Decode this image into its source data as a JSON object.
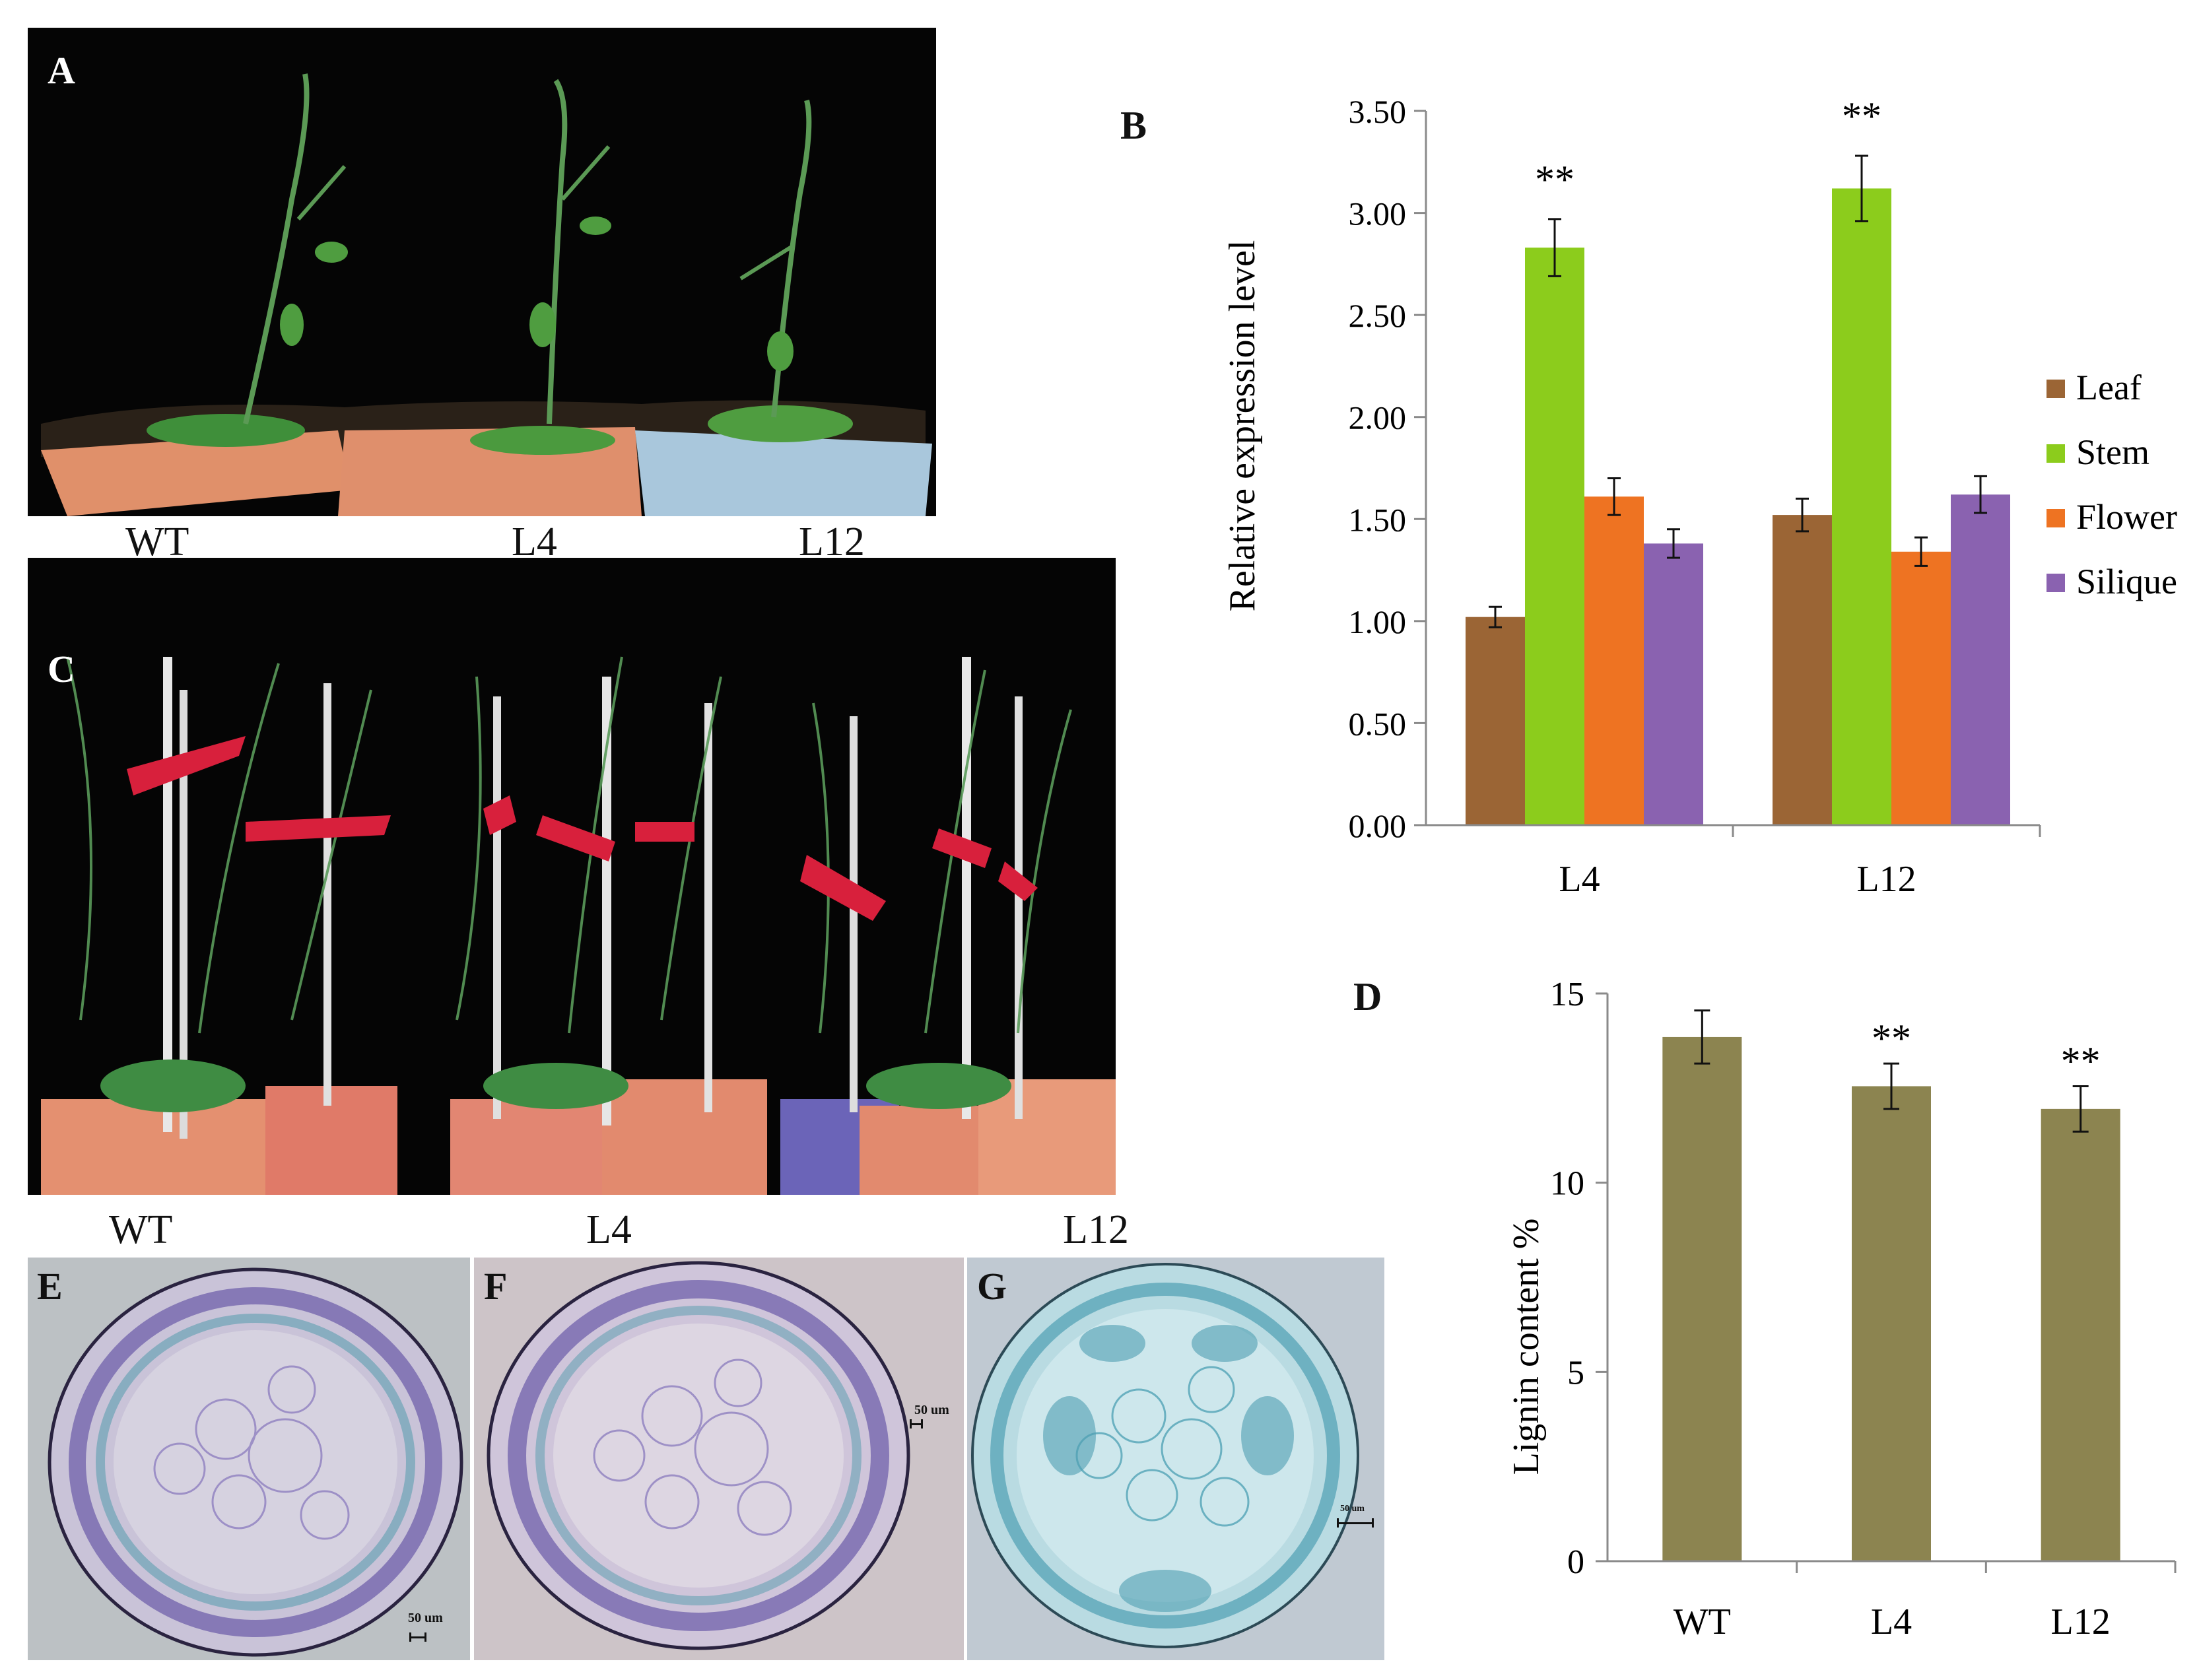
{
  "panels": {
    "a": {
      "letter": "A",
      "labels": [
        "WT",
        "L4",
        "L12"
      ]
    },
    "b": {
      "letter": "B"
    },
    "c": {
      "letter": "C",
      "labels": [
        "WT",
        "L4",
        "L12"
      ]
    },
    "d": {
      "letter": "D"
    },
    "e": {
      "letter": "E",
      "scale": "50 um"
    },
    "f": {
      "letter": "F",
      "scale": "50 um"
    },
    "g": {
      "letter": "G",
      "scale": "50 um"
    }
  },
  "chart_data": [
    {
      "id": "B",
      "type": "bar",
      "categories": [
        "L4",
        "L12"
      ],
      "ylabel": "Relative expression level",
      "ylim": [
        0,
        3.5
      ],
      "yticks": [
        "0.00",
        "0.50",
        "1.00",
        "1.50",
        "2.00",
        "2.50",
        "3.00",
        "3.50"
      ],
      "grid": false,
      "legend_position": "right",
      "series": [
        {
          "name": "Leaf",
          "color": "#9b6535",
          "values": [
            1.02,
            1.52
          ],
          "errors": [
            0.05,
            0.08
          ]
        },
        {
          "name": "Stem",
          "color": "#8ccc1c",
          "values": [
            2.83,
            3.12
          ],
          "errors": [
            0.14,
            0.16
          ]
        },
        {
          "name": "Flower",
          "color": "#ee7322",
          "values": [
            1.61,
            1.34
          ],
          "errors": [
            0.09,
            0.07
          ]
        },
        {
          "name": "Silique",
          "color": "#8a62b0",
          "values": [
            1.38,
            1.62
          ],
          "errors": [
            0.07,
            0.09
          ]
        }
      ],
      "annotations": [
        {
          "series": "Stem",
          "category": "L4",
          "text": "**"
        },
        {
          "series": "Stem",
          "category": "L12",
          "text": "**"
        }
      ]
    },
    {
      "id": "D",
      "type": "bar",
      "categories": [
        "WT",
        "L4",
        "L12"
      ],
      "ylabel": "Lignin content %",
      "ylim": [
        0,
        15
      ],
      "yticks": [
        "0",
        "5",
        "10",
        "15"
      ],
      "grid": false,
      "series": [
        {
          "color": "#8c8450",
          "values": [
            13.85,
            12.55,
            11.95
          ],
          "errors": [
            0.7,
            0.6,
            0.6
          ]
        }
      ],
      "annotations": [
        {
          "category": "L4",
          "text": "**"
        },
        {
          "category": "L12",
          "text": "**"
        }
      ]
    }
  ]
}
